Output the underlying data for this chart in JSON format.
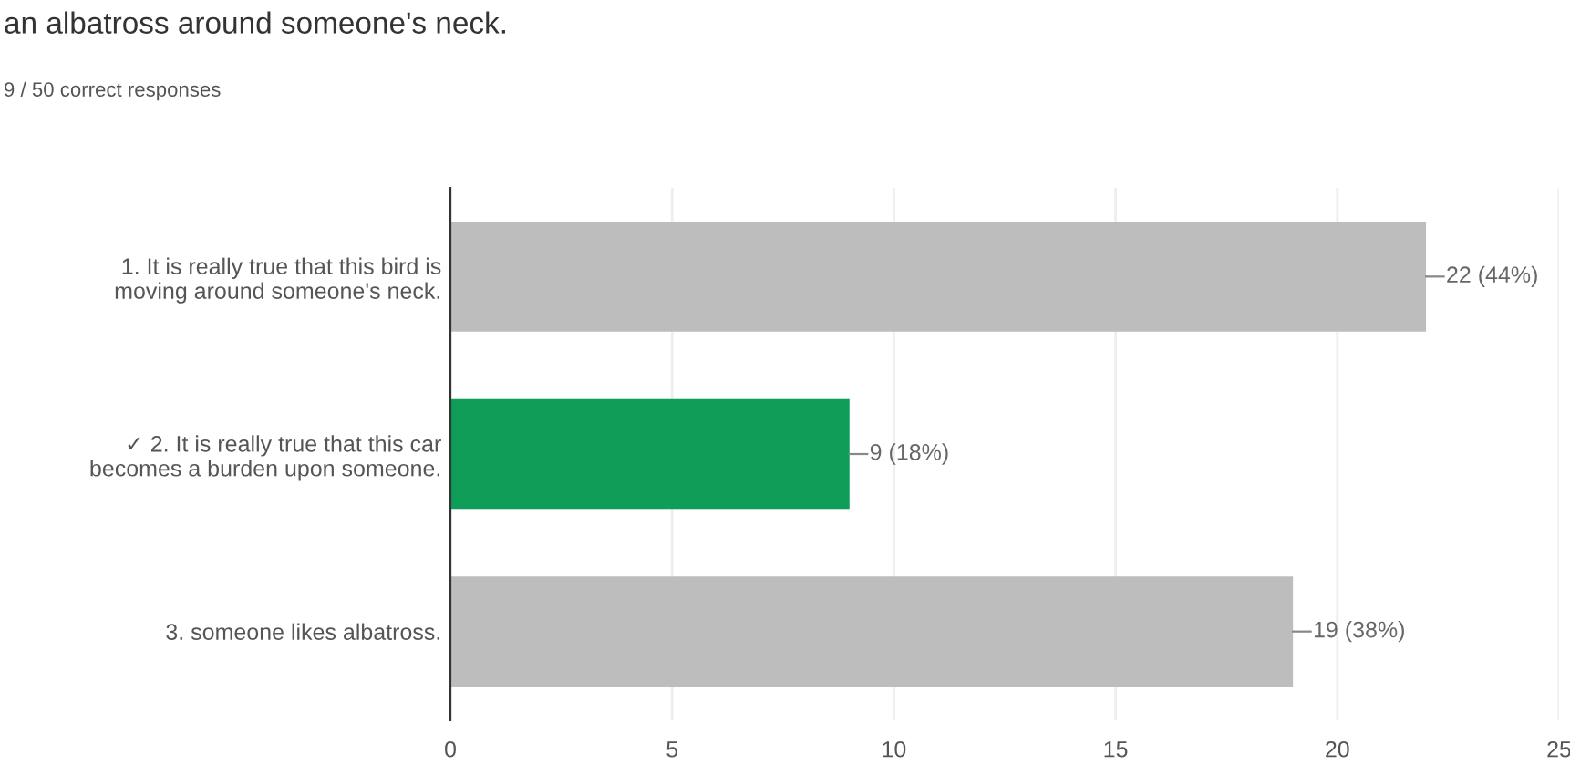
{
  "chart_data": {
    "type": "bar",
    "orientation": "horizontal",
    "title": "an albatross around someone's neck.",
    "subtitle": "9 / 50 correct responses",
    "categories": [
      "1. It is really true that this bird is moving around someone's neck.",
      "✓ 2. It is really true that this car becomes a burden upon someone.",
      "3. someone likes albatross."
    ],
    "values": [
      22,
      9,
      19
    ],
    "colors": [
      "#bdbdbd",
      "#0f9d58",
      "#bdbdbd"
    ],
    "value_labels": [
      "22 (44%)",
      "9 (18%)",
      "19 (38%)"
    ],
    "xlim": [
      0,
      25
    ],
    "xticks": [
      0,
      5,
      10,
      15,
      20,
      25
    ],
    "grid": "x"
  }
}
